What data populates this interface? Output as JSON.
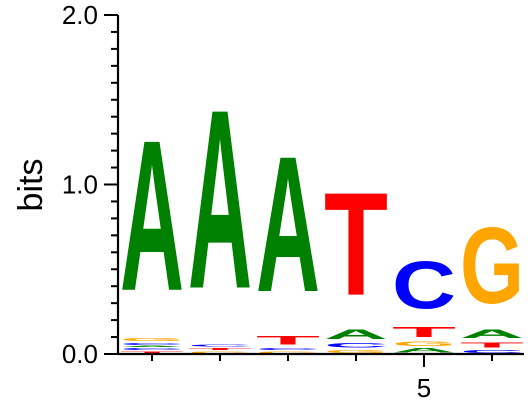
{
  "chart_data": {
    "type": "sequence-logo",
    "title": "",
    "xlabel": "",
    "ylabel": "bits",
    "ylim": [
      0,
      2
    ],
    "y_ticks": [
      "0.0",
      "1.0",
      "2.0"
    ],
    "x_tick_labels": [
      {
        "position": 5,
        "label": "5"
      }
    ],
    "colors": {
      "A": "#008000",
      "C": "#0000ff",
      "G": "#ffa500",
      "T": "#ff0000"
    },
    "positions": [
      {
        "position": 1,
        "stack": [
          {
            "letter": "T",
            "height": 0.02
          },
          {
            "letter": "C",
            "height": 0.02
          },
          {
            "letter": "A",
            "height": 0.01
          },
          {
            "letter": "C",
            "height": 0.02
          },
          {
            "letter": "G",
            "height": 0.03
          },
          {
            "letter": "A",
            "height": 1.42
          }
        ]
      },
      {
        "position": 2,
        "stack": [
          {
            "letter": "G",
            "height": 0.02
          },
          {
            "letter": "T",
            "height": 0.02
          },
          {
            "letter": "C",
            "height": 0.02
          },
          {
            "letter": "A",
            "height": 1.69
          }
        ]
      },
      {
        "position": 3,
        "stack": [
          {
            "letter": "G",
            "height": 0.02
          },
          {
            "letter": "C",
            "height": 0.02
          },
          {
            "letter": "T",
            "height": 0.08
          },
          {
            "letter": "A",
            "height": 1.28
          }
        ]
      },
      {
        "position": 4,
        "stack": [
          {
            "letter": "G",
            "height": 0.03
          },
          {
            "letter": "C",
            "height": 0.04
          },
          {
            "letter": "A",
            "height": 0.09
          },
          {
            "letter": "T",
            "height": 0.97
          }
        ]
      },
      {
        "position": 5,
        "stack": [
          {
            "letter": "A",
            "height": 0.04
          },
          {
            "letter": "G",
            "height": 0.04
          },
          {
            "letter": "T",
            "height": 0.1
          },
          {
            "letter": "C",
            "height": 0.45
          }
        ]
      },
      {
        "position": 6,
        "stack": [
          {
            "letter": "C",
            "height": 0.03
          },
          {
            "letter": "T",
            "height": 0.05
          },
          {
            "letter": "A",
            "height": 0.08
          },
          {
            "letter": "G",
            "height": 0.72
          }
        ]
      }
    ]
  }
}
